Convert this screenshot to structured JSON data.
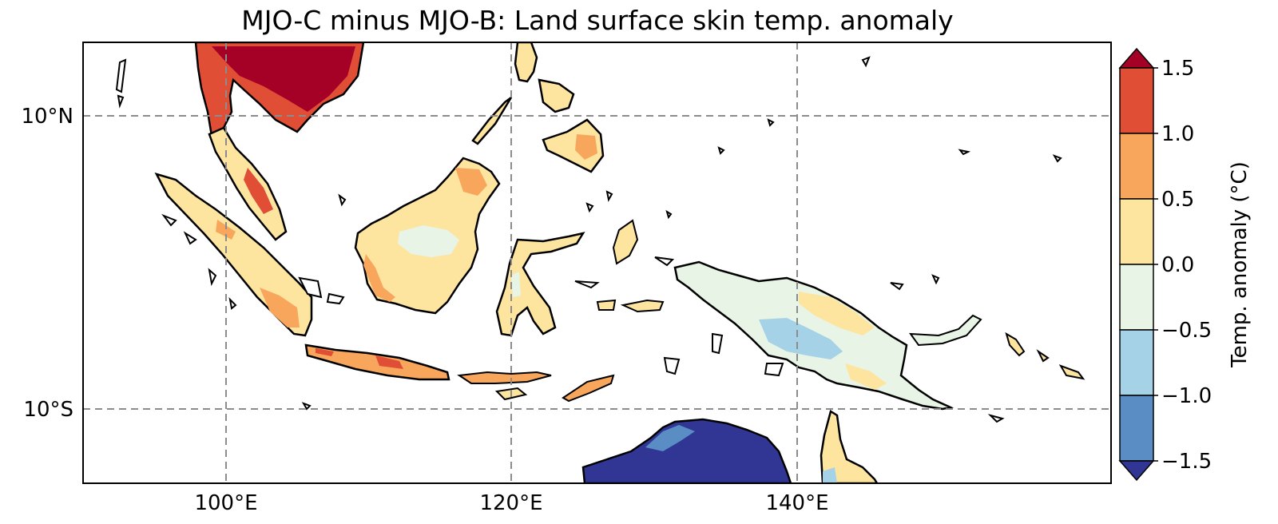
{
  "title": "MJO-C minus MJO-B: Land surface skin temp. anomaly",
  "map": {
    "extent": {
      "lon": [
        90,
        160
      ],
      "lat": [
        -15,
        15
      ]
    },
    "gridlines": {
      "lon": [
        100,
        120,
        140
      ],
      "lat": [
        10,
        -10
      ],
      "style": "dashed",
      "color": "#8c8c8c"
    },
    "xticks": [
      "100°E",
      "120°E",
      "140°E"
    ],
    "yticks": [
      "10°N",
      "10°S"
    ],
    "land_outline_color": "#000000"
  },
  "colorbar": {
    "label": "Temp. anomaly (°C)",
    "ticks": [
      "−1.5",
      "−1.0",
      "−0.5",
      "0.0",
      "0.5",
      "1.0",
      "1.5"
    ],
    "levels": [
      -1.5,
      -1.0,
      -0.5,
      0.0,
      0.5,
      1.0,
      1.5
    ],
    "colors": [
      "#5b8dc5",
      "#a5d2e6",
      "#e8f4e6",
      "#fde5a0",
      "#f8a65c",
      "#e04e35"
    ],
    "under_color": "#313695",
    "over_color": "#a50026",
    "extend": "both"
  },
  "regions": [
    {
      "name": "Indochina",
      "fill": "#e04e35",
      "accent": "#a50026"
    },
    {
      "name": "Malay Peninsula",
      "fill": "#fde5a0",
      "accent": "#e04e35"
    },
    {
      "name": "Sumatra",
      "fill": "#fde5a0",
      "accent": "#f8a65c"
    },
    {
      "name": "Java",
      "fill": "#f8a65c",
      "accent": "#e04e35"
    },
    {
      "name": "Borneo",
      "fill": "#fde5a0",
      "accent": "#f8a65c"
    },
    {
      "name": "Sulawesi",
      "fill": "#fde5a0",
      "accent": "#e8f4e6"
    },
    {
      "name": "Philippines",
      "fill": "#fde5a0",
      "accent": "#f8a65c"
    },
    {
      "name": "New Guinea",
      "fill": "#e8f4e6",
      "accent": "#a5d2e6"
    },
    {
      "name": "Northern Australia",
      "fill": "#313695",
      "accent": "#5b8dc5"
    },
    {
      "name": "Cape York",
      "fill": "#fde5a0",
      "accent": "#a5d2e6"
    }
  ]
}
